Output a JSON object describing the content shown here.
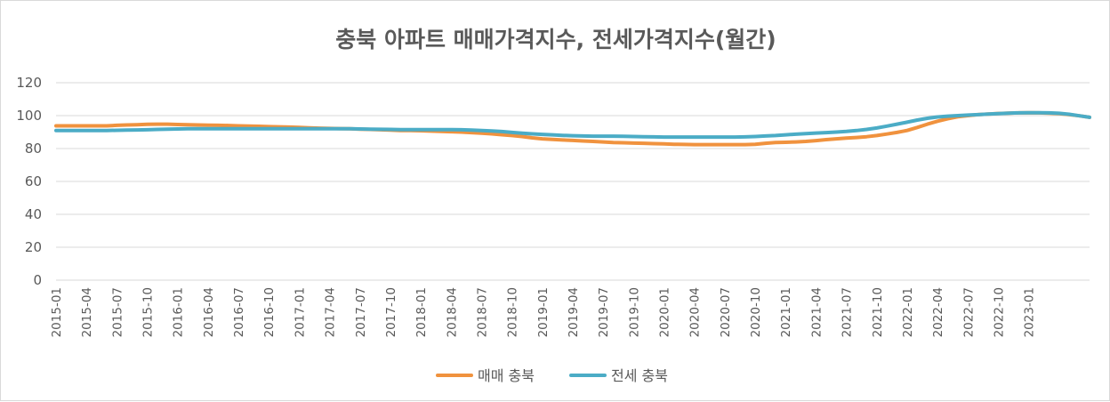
{
  "chart_data": {
    "type": "line",
    "title": "충북 아파트 매매가격지수, 전세가격지수(월간)",
    "ylim": [
      0,
      120
    ],
    "yticks": [
      0,
      20,
      40,
      60,
      80,
      100,
      120
    ],
    "grid": true,
    "legend_position": "bottom",
    "x_start": "2015-01",
    "x_end": "2023-01",
    "x_tick_labels": [
      "2015-01",
      "2015-04",
      "2015-07",
      "2015-10",
      "2016-01",
      "2016-04",
      "2016-07",
      "2016-10",
      "2017-01",
      "2017-04",
      "2017-07",
      "2017-10",
      "2018-01",
      "2018-04",
      "2018-07",
      "2018-10",
      "2019-01",
      "2019-04",
      "2019-07",
      "2019-10",
      "2020-01",
      "2020-04",
      "2020-07",
      "2020-10",
      "2021-01",
      "2021-04",
      "2021-07",
      "2021-10",
      "2022-01",
      "2022-04",
      "2022-07",
      "2022-10",
      "2023-01"
    ],
    "series": [
      {
        "name": "매매 충북",
        "color": "#F0923E",
        "values": [
          93.8,
          93.8,
          93.8,
          93.8,
          93.8,
          93.8,
          94.1,
          94.3,
          94.5,
          94.7,
          94.8,
          94.8,
          94.6,
          94.5,
          94.3,
          94.2,
          94.1,
          94.0,
          93.8,
          93.7,
          93.5,
          93.3,
          93.2,
          93.0,
          92.8,
          92.6,
          92.4,
          92.2,
          92.1,
          92.0,
          91.8,
          91.6,
          91.4,
          91.2,
          91.0,
          90.9,
          90.8,
          90.6,
          90.4,
          90.2,
          90.0,
          89.7,
          89.3,
          88.9,
          88.4,
          87.9,
          87.3,
          86.5,
          85.9,
          85.5,
          85.2,
          84.9,
          84.6,
          84.3,
          84.0,
          83.7,
          83.5,
          83.3,
          83.2,
          83.0,
          82.8,
          82.6,
          82.5,
          82.4,
          82.4,
          82.4,
          82.4,
          82.4,
          82.4,
          82.6,
          83.2,
          83.6,
          83.8,
          84.0,
          84.3,
          84.8,
          85.4,
          85.9,
          86.3,
          86.7,
          87.2,
          87.9,
          88.8,
          89.8,
          91.0,
          92.8,
          94.8,
          96.6,
          98.1,
          99.3,
          100.0,
          100.6,
          101.0,
          101.3,
          101.5,
          101.7,
          101.8,
          101.7,
          101.5,
          101.2,
          100.6,
          99.9,
          99.0
        ]
      },
      {
        "name": "전세 충북",
        "color": "#4BACC6",
        "values": [
          91.0,
          91.0,
          91.0,
          91.0,
          91.0,
          91.0,
          91.1,
          91.2,
          91.3,
          91.4,
          91.6,
          91.8,
          91.9,
          92.0,
          92.0,
          92.0,
          92.0,
          92.0,
          92.0,
          92.0,
          92.0,
          92.0,
          92.0,
          92.0,
          92.0,
          92.0,
          92.0,
          92.0,
          92.0,
          92.0,
          91.9,
          91.8,
          91.7,
          91.6,
          91.5,
          91.5,
          91.5,
          91.5,
          91.5,
          91.5,
          91.4,
          91.2,
          91.0,
          90.7,
          90.3,
          89.8,
          89.3,
          88.9,
          88.6,
          88.3,
          88.0,
          87.8,
          87.6,
          87.5,
          87.5,
          87.5,
          87.4,
          87.3,
          87.2,
          87.1,
          87.0,
          87.0,
          87.0,
          87.0,
          87.0,
          87.0,
          87.0,
          87.0,
          87.1,
          87.3,
          87.6,
          87.9,
          88.3,
          88.7,
          89.1,
          89.4,
          89.7,
          90.0,
          90.4,
          90.9,
          91.6,
          92.5,
          93.6,
          94.8,
          96.0,
          97.3,
          98.4,
          99.2,
          99.7,
          100.0,
          100.3,
          100.6,
          100.9,
          101.2,
          101.5,
          101.7,
          101.8,
          101.8,
          101.7,
          101.4,
          100.8,
          99.9,
          99.0
        ]
      }
    ]
  }
}
